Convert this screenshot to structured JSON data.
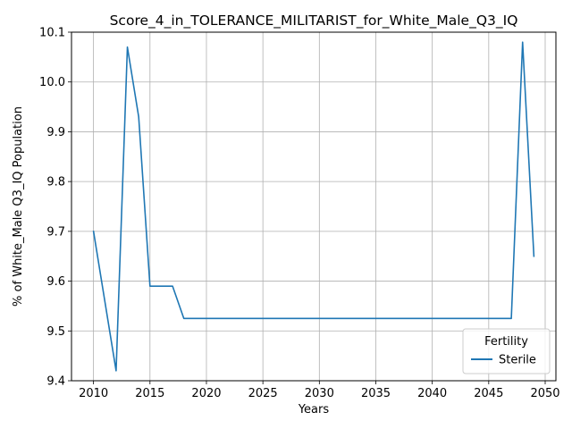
{
  "chart_data": {
    "type": "line",
    "title": "Score_4_in_TOLERANCE_MILITARIST_for_White_Male_Q3_IQ",
    "xlabel": "Years",
    "ylabel": "% of White_Male Q3_IQ Population",
    "xlim": [
      2008.05,
      2050.95
    ],
    "ylim": [
      9.4,
      10.1
    ],
    "x_ticks": [
      2010,
      2015,
      2020,
      2025,
      2030,
      2035,
      2040,
      2045,
      2050
    ],
    "x_tick_labels": [
      "2010",
      "2015",
      "2020",
      "2025",
      "2030",
      "2035",
      "2040",
      "2045",
      "2050"
    ],
    "y_ticks": [
      9.4,
      9.5,
      9.6,
      9.7,
      9.8,
      9.9,
      10.0,
      10.1
    ],
    "y_tick_labels": [
      "9.4",
      "9.5",
      "9.6",
      "9.7",
      "9.8",
      "9.9",
      "10.0",
      "10.1"
    ],
    "grid": true,
    "legend": {
      "title": "Fertility",
      "position": "lower-right"
    },
    "series": [
      {
        "name": "Sterile",
        "color": "#1f77b4",
        "x": [
          2010,
          2011,
          2012,
          2013,
          2014,
          2015,
          2016,
          2017,
          2018,
          2019,
          2020,
          2021,
          2022,
          2023,
          2024,
          2025,
          2026,
          2027,
          2028,
          2029,
          2030,
          2031,
          2032,
          2033,
          2034,
          2035,
          2036,
          2037,
          2038,
          2039,
          2040,
          2041,
          2042,
          2043,
          2044,
          2045,
          2046,
          2047,
          2048,
          2049
        ],
        "y": [
          9.7,
          9.56,
          9.42,
          10.07,
          9.93,
          9.59,
          9.59,
          9.59,
          9.525,
          9.525,
          9.525,
          9.525,
          9.525,
          9.525,
          9.525,
          9.525,
          9.525,
          9.525,
          9.525,
          9.525,
          9.525,
          9.525,
          9.525,
          9.525,
          9.525,
          9.525,
          9.525,
          9.525,
          9.525,
          9.525,
          9.525,
          9.525,
          9.525,
          9.525,
          9.525,
          9.525,
          9.525,
          9.525,
          10.08,
          9.65
        ]
      }
    ]
  }
}
